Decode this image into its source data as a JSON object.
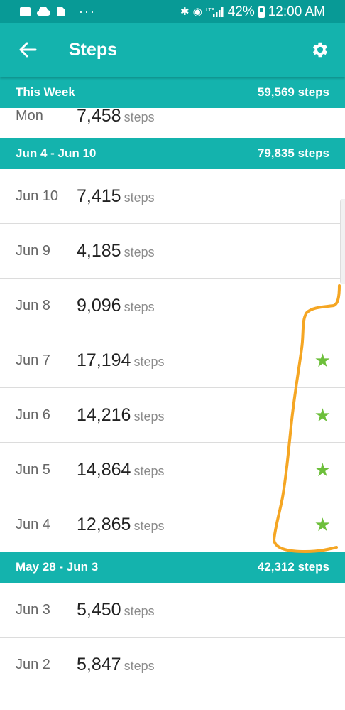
{
  "status_bar": {
    "battery_percent": "42%",
    "time": "12:00 AM",
    "left_icons": [
      "image-icon",
      "cloud-icon",
      "sim-icon",
      "more-dots-icon"
    ],
    "right_icons": [
      "bluetooth-icon",
      "vibrate-icon",
      "lte-signal-icon",
      "battery-icon"
    ],
    "lte_label": "LTE"
  },
  "app_bar": {
    "title": "Steps",
    "back_icon": "arrow-back-icon",
    "settings_icon": "gear-icon"
  },
  "sections": [
    {
      "range": "This Week",
      "total": "59,569 steps",
      "days": [
        {
          "day": "Mon",
          "count": "7,458",
          "unit": "steps",
          "star": false
        }
      ]
    },
    {
      "range": "Jun 4 - Jun 10",
      "total": "79,835 steps",
      "days": [
        {
          "day": "Jun 10",
          "count": "7,415",
          "unit": "steps",
          "star": false
        },
        {
          "day": "Jun 9",
          "count": "4,185",
          "unit": "steps",
          "star": false
        },
        {
          "day": "Jun 8",
          "count": "9,096",
          "unit": "steps",
          "star": false
        },
        {
          "day": "Jun 7",
          "count": "17,194",
          "unit": "steps",
          "star": true
        },
        {
          "day": "Jun 6",
          "count": "14,216",
          "unit": "steps",
          "star": true
        },
        {
          "day": "Jun 5",
          "count": "14,864",
          "unit": "steps",
          "star": true
        },
        {
          "day": "Jun 4",
          "count": "12,865",
          "unit": "steps",
          "star": true
        }
      ]
    },
    {
      "range": "May 28 - Jun 3",
      "total": "42,312 steps",
      "days": [
        {
          "day": "Jun 3",
          "count": "5,450",
          "unit": "steps",
          "star": false
        },
        {
          "day": "Jun 2",
          "count": "5,847",
          "unit": "steps",
          "star": false
        }
      ]
    }
  ],
  "star_glyph": "★",
  "colors": {
    "status_bar": "#089a96",
    "app_bar": "#14b3ad",
    "star": "#6dbf3b",
    "annotation_stroke": "#f5a623"
  }
}
